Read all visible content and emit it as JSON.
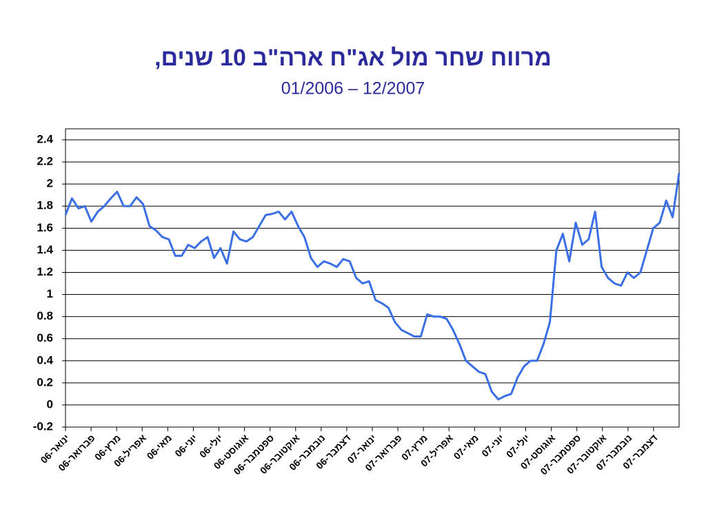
{
  "chart_data": {
    "type": "line",
    "title": "מרווח שחר מול אג\"ח ארה\"ב 10 שנים,",
    "subtitle": "01/2006 – 12/2007",
    "categories": [
      "ינואר-06",
      null,
      null,
      null,
      "פברואר-06",
      null,
      null,
      null,
      "מרץ-06",
      null,
      null,
      null,
      "אפריל-06",
      null,
      null,
      null,
      "מאי-06",
      null,
      null,
      null,
      "יוני-06",
      null,
      null,
      null,
      "יולי-06",
      null,
      null,
      null,
      "אוגוסט-06",
      null,
      null,
      null,
      "ספטמבר-06",
      null,
      null,
      null,
      "אוקטובר-06",
      null,
      null,
      null,
      "נובמבר-06",
      null,
      null,
      null,
      "דצמבר-06",
      null,
      null,
      null,
      "ינואר-07",
      null,
      null,
      null,
      "פברואר-07",
      null,
      null,
      null,
      "מרץ-07",
      null,
      null,
      null,
      "אפריל-07",
      null,
      null,
      null,
      "מאי-07",
      null,
      null,
      null,
      "יוני-07",
      null,
      null,
      null,
      "יולי-07",
      null,
      null,
      null,
      "אוגוסט-07",
      null,
      null,
      null,
      "ספטמבר-07",
      null,
      null,
      null,
      "אוקטובר-07",
      null,
      null,
      null,
      "נובמבר-07",
      null,
      null,
      null,
      "דצמבר-07",
      null,
      null,
      null
    ],
    "series": [
      {
        "color": "#3a6fe6",
        "values": [
          1.72,
          1.87,
          1.78,
          1.8,
          1.66,
          1.75,
          1.8,
          1.87,
          1.93,
          1.8,
          1.8,
          1.88,
          1.82,
          1.62,
          1.58,
          1.52,
          1.5,
          1.35,
          1.35,
          1.45,
          1.42,
          1.48,
          1.52,
          1.33,
          1.42,
          1.28,
          1.57,
          1.5,
          1.48,
          1.52,
          1.62,
          1.72,
          1.73,
          1.75,
          1.68,
          1.75,
          1.62,
          1.52,
          1.33,
          1.25,
          1.3,
          1.28,
          1.25,
          1.32,
          1.3,
          1.15,
          1.1,
          1.12,
          0.95,
          0.92,
          0.88,
          0.75,
          0.68,
          0.65,
          0.62,
          0.62,
          0.82,
          0.8,
          0.8,
          0.78,
          0.68,
          0.55,
          0.4,
          0.35,
          0.3,
          0.28,
          0.12,
          0.05,
          0.08,
          0.1,
          0.25,
          0.35,
          0.4,
          0.4,
          0.55,
          0.75,
          1.4,
          1.55,
          1.3,
          1.65,
          1.45,
          1.5,
          1.75,
          1.25,
          1.15,
          1.1,
          1.08,
          1.2,
          1.15,
          1.2,
          1.4,
          1.6,
          1.65,
          1.85,
          1.7,
          2.1
        ]
      }
    ],
    "ylim": [
      -0.2,
      2.5
    ],
    "yticks": [
      -0.2,
      0,
      0.2,
      0.4,
      0.6,
      0.8,
      1,
      1.2,
      1.4,
      1.6,
      1.8,
      2,
      2.2,
      2.4
    ],
    "grid": true
  }
}
